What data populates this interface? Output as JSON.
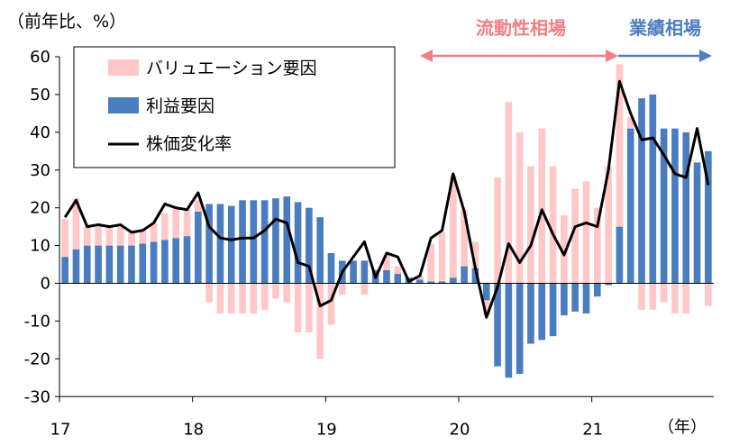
{
  "chart_data": {
    "type": "bar",
    "stacked": true,
    "unit_label": "（前年比、%）",
    "x_unit_label": "（年）",
    "x_tick_labels": [
      "17",
      "18",
      "19",
      "20",
      "21"
    ],
    "ylim": [
      -30,
      60
    ],
    "y_ticks": [
      60,
      50,
      40,
      30,
      20,
      10,
      0,
      -10,
      -20,
      -30
    ],
    "grid": false,
    "legend_position": "top-left",
    "phase_annotations": [
      {
        "label": "流動性相場",
        "color": "#f07f86",
        "direction": "both"
      },
      {
        "label": "業績相場",
        "color": "#4f7fbf",
        "direction": "right"
      }
    ],
    "colors": {
      "valuation": "#ffc7c7",
      "earnings": "#4a7dbf",
      "stock": "#000000"
    },
    "series": [
      {
        "name": "バリュエーション要因",
        "type": "bar",
        "values": [
          10,
          13.5,
          5,
          5,
          5,
          5,
          4,
          4,
          5,
          7,
          8,
          7,
          3,
          -5,
          -8,
          -8,
          -8,
          -8,
          -7,
          -4,
          -5,
          -13,
          -13,
          -20,
          -11,
          -3,
          0,
          -3,
          0,
          4,
          2,
          0,
          1,
          10,
          13,
          27,
          15,
          7,
          -4,
          28,
          48,
          40,
          31,
          41,
          31,
          18,
          25,
          27,
          20,
          31,
          43,
          3,
          -7,
          -7,
          -5,
          -8,
          -8,
          0,
          -6
        ]
      },
      {
        "name": "利益要因",
        "type": "bar",
        "values": [
          7,
          9,
          10,
          10,
          10,
          10,
          10,
          10.5,
          11,
          11.5,
          12,
          12.5,
          19,
          21,
          21,
          20.5,
          22,
          22,
          22,
          22.5,
          23,
          21.5,
          20,
          17.5,
          8,
          6,
          6,
          6,
          3.5,
          3.5,
          2.5,
          1.5,
          1,
          0.5,
          0.5,
          1.5,
          4.5,
          4,
          -4.5,
          -22,
          -25,
          -24,
          -16,
          -15,
          -14,
          -8.5,
          -7.5,
          -8,
          -3.5,
          -0.5,
          15,
          41,
          49,
          50,
          41,
          41,
          40,
          32,
          35
        ]
      },
      {
        "name": "株価変化率",
        "type": "line",
        "values": [
          17.5,
          22,
          15,
          15.5,
          15,
          15.5,
          13.5,
          14,
          16,
          21,
          20,
          19.5,
          24,
          15,
          12,
          11.5,
          12,
          12,
          14,
          17,
          16,
          5.5,
          4.5,
          -6,
          -4.5,
          3,
          7,
          11,
          1.5,
          8,
          7,
          0.5,
          2,
          12,
          14,
          29,
          19,
          4,
          -9,
          -1,
          10.5,
          5.5,
          10,
          19.5,
          13,
          7.5,
          15,
          16,
          15,
          30,
          53.5,
          45,
          38,
          38.5,
          34,
          29,
          28,
          41,
          26
        ]
      }
    ]
  }
}
